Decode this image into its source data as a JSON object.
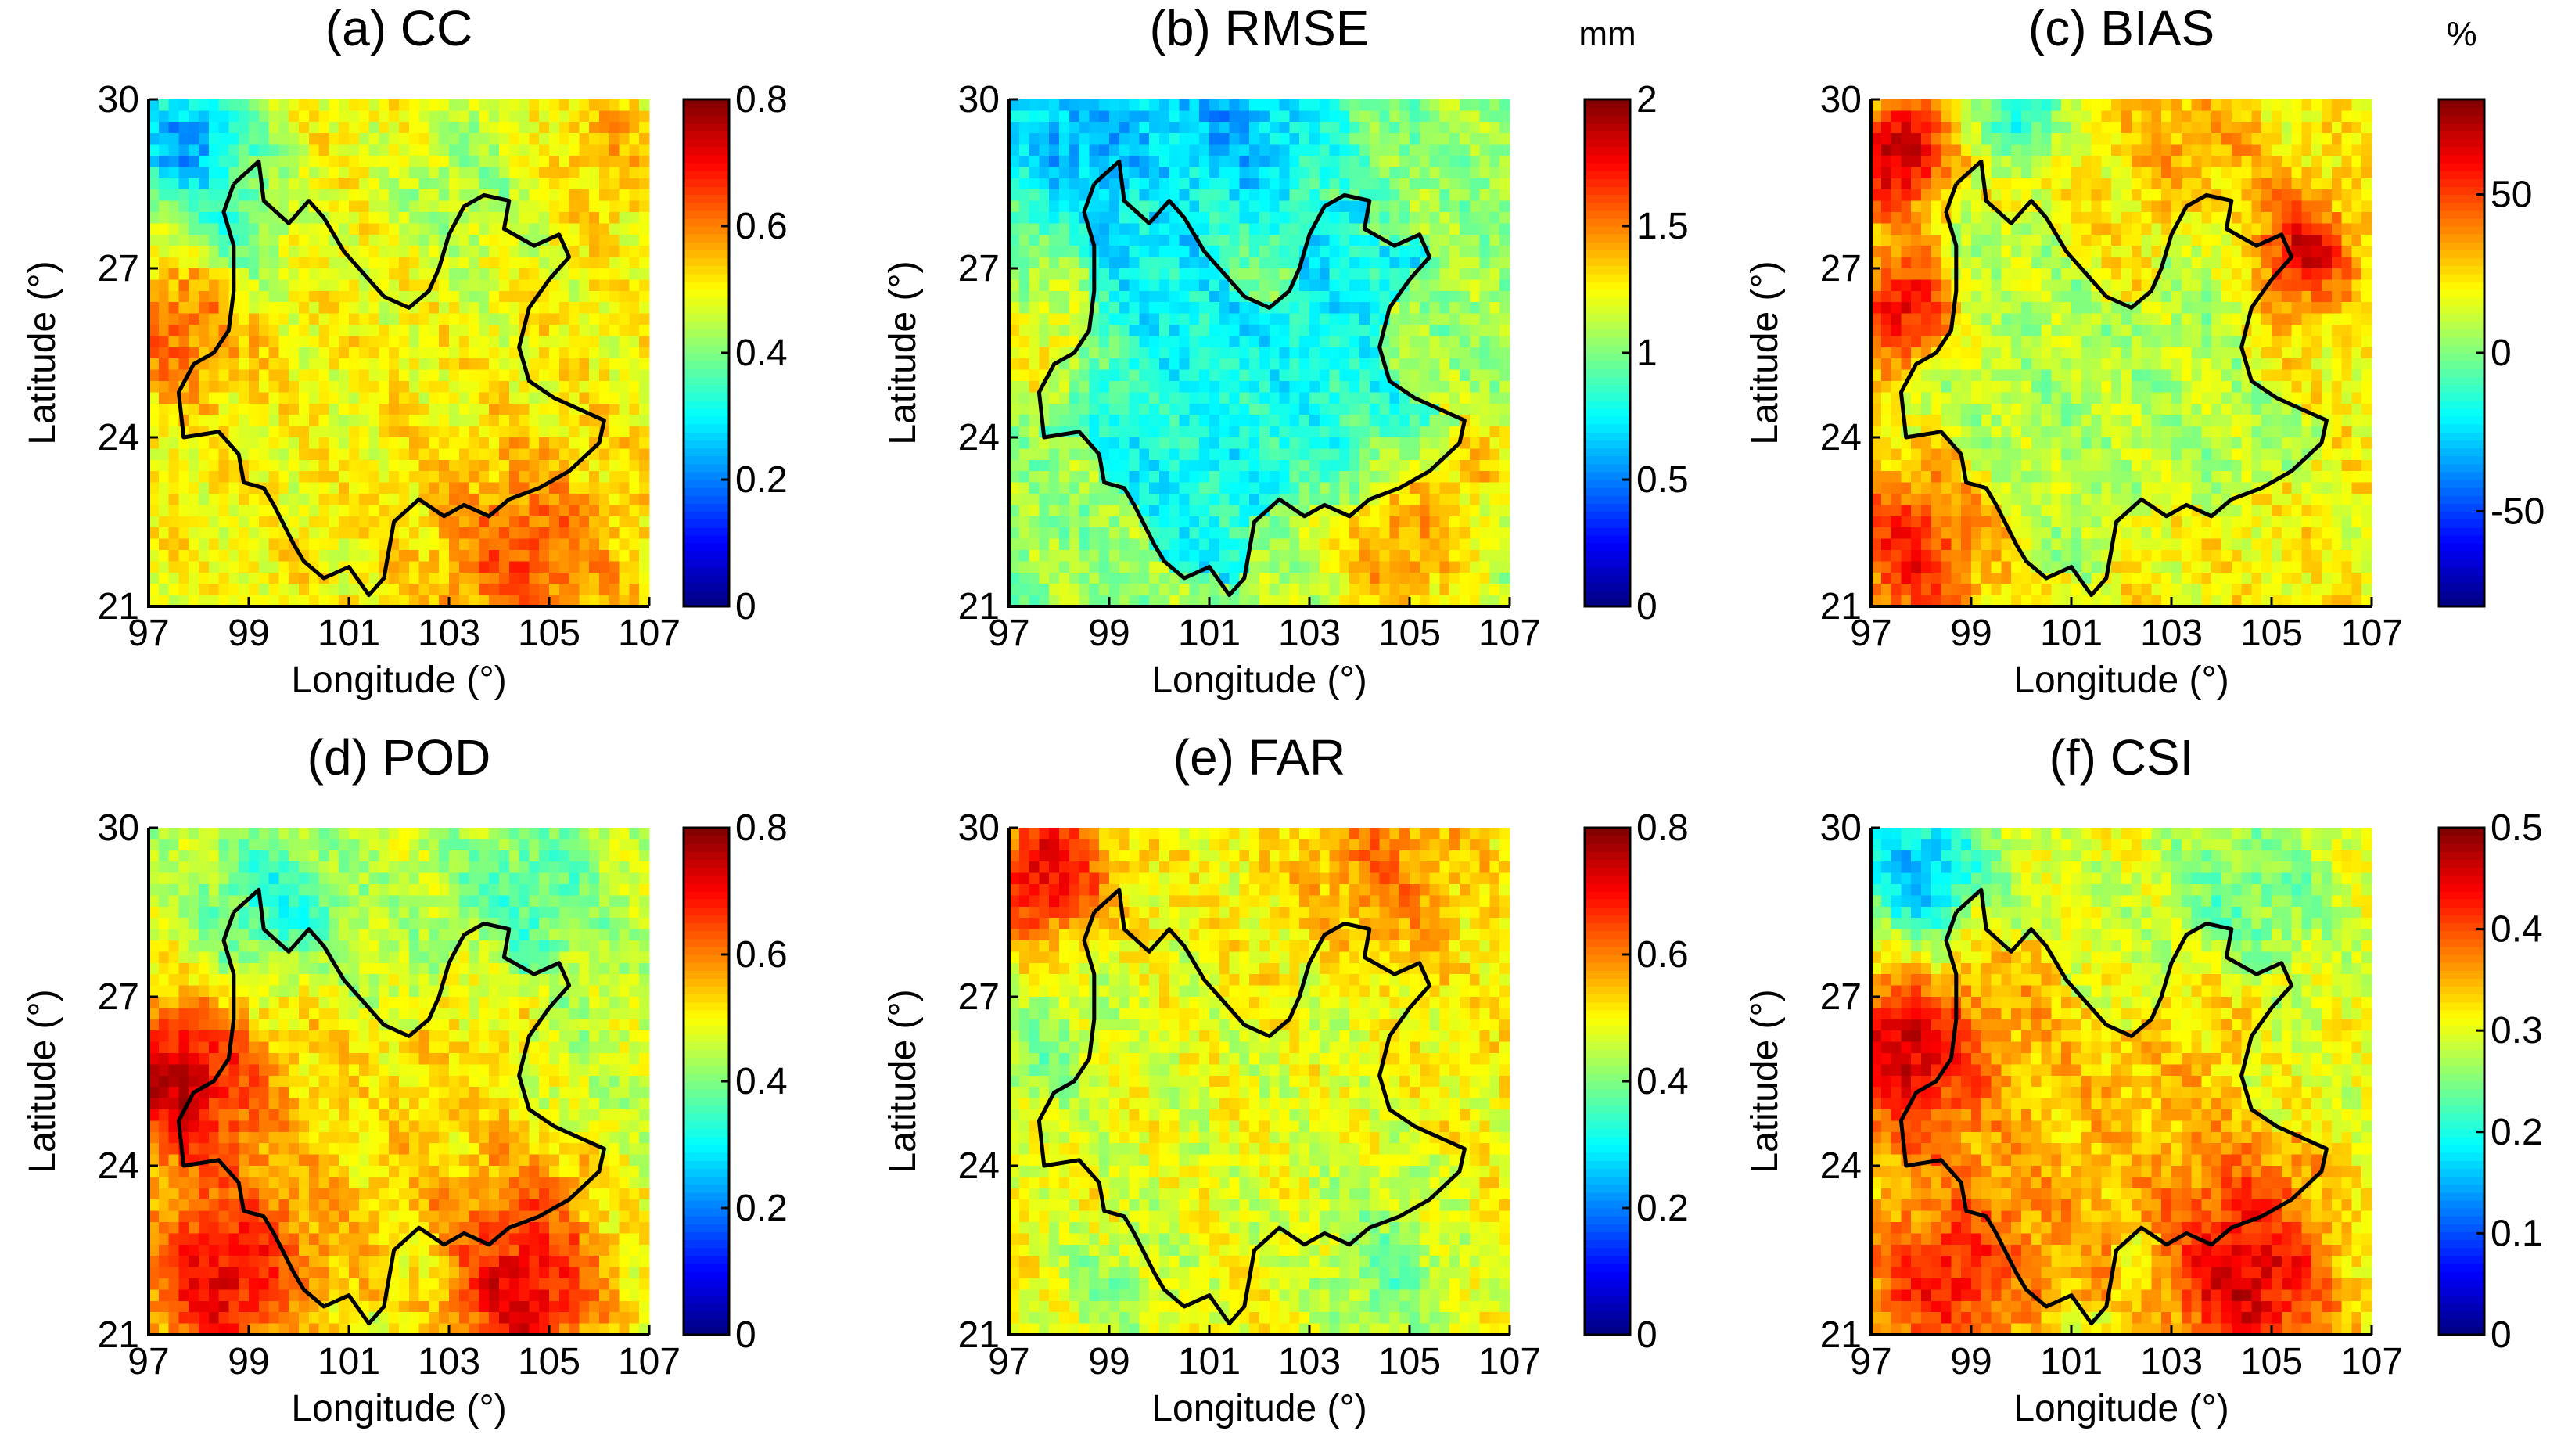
{
  "figure": {
    "colormap": "jet",
    "region_outline": "Yunnan Province boundary"
  },
  "chart_data": [
    {
      "type": "heatmap",
      "id": "a",
      "title": "(a) CC",
      "xlabel": "Longitude (°)",
      "ylabel": "Latitude (°)",
      "xlim": [
        97,
        107
      ],
      "ylim": [
        21,
        30
      ],
      "xticks": [
        "97",
        "99",
        "101",
        "103",
        "105",
        "107"
      ],
      "yticks": [
        "21",
        "24",
        "27",
        "30"
      ],
      "colorbar": {
        "min": 0,
        "max": 0.8,
        "ticks": [
          "0",
          "0.2",
          "0.4",
          "0.6",
          "0.8"
        ],
        "unit": ""
      },
      "field": {
        "base": 0.5,
        "inside": 0.5,
        "features": [
          {
            "lon": 97.8,
            "lat": 29.2,
            "r": 1.4,
            "v": 0.22
          },
          {
            "lon": 98.6,
            "lat": 27.6,
            "r": 1.0,
            "v": 0.32
          },
          {
            "lon": 97.6,
            "lat": 26.0,
            "r": 1.3,
            "v": 0.62
          },
          {
            "lon": 104.5,
            "lat": 21.8,
            "r": 1.8,
            "v": 0.64
          },
          {
            "lon": 103.5,
            "lat": 28.5,
            "r": 1.6,
            "v": 0.42
          },
          {
            "lon": 106.0,
            "lat": 29.0,
            "r": 1.3,
            "v": 0.55
          }
        ]
      }
    },
    {
      "type": "heatmap",
      "id": "b",
      "title": "(b) RMSE",
      "xlabel": "Longitude (°)",
      "ylabel": "Latitude (°)",
      "xlim": [
        97,
        107
      ],
      "ylim": [
        21,
        30
      ],
      "xticks": [
        "97",
        "99",
        "101",
        "103",
        "105",
        "107"
      ],
      "yticks": [
        "21",
        "24",
        "27",
        "30"
      ],
      "colorbar": {
        "min": 0,
        "max": 2,
        "ticks": [
          "0",
          "0.5",
          "1",
          "1.5",
          "2"
        ],
        "unit": "mm"
      },
      "field": {
        "base": 1.05,
        "inside": 0.78,
        "features": [
          {
            "lon": 98.5,
            "lat": 29.4,
            "r": 1.8,
            "v": 0.55
          },
          {
            "lon": 101.5,
            "lat": 29.5,
            "r": 2.2,
            "v": 0.6
          },
          {
            "lon": 104.8,
            "lat": 22.0,
            "r": 1.6,
            "v": 1.45
          },
          {
            "lon": 106.3,
            "lat": 23.5,
            "r": 1.0,
            "v": 1.35
          },
          {
            "lon": 97.6,
            "lat": 25.5,
            "r": 1.2,
            "v": 1.25
          }
        ]
      }
    },
    {
      "type": "heatmap",
      "id": "c",
      "title": "(c) BIAS",
      "xlabel": "Longitude (°)",
      "ylabel": "Latitude (°)",
      "xlim": [
        97,
        107
      ],
      "ylim": [
        21,
        30
      ],
      "xticks": [
        "97",
        "99",
        "101",
        "103",
        "105",
        "107"
      ],
      "yticks": [
        "21",
        "24",
        "27",
        "30"
      ],
      "colorbar": {
        "min": -80,
        "max": 80,
        "ticks": [
          "-50",
          "0",
          "50"
        ],
        "tickvalues": [
          -50,
          0,
          50
        ],
        "unit": "%"
      },
      "field": {
        "base": 20,
        "inside": 8,
        "features": [
          {
            "lon": 97.5,
            "lat": 29.0,
            "r": 1.0,
            "v": 72
          },
          {
            "lon": 97.6,
            "lat": 26.3,
            "r": 1.0,
            "v": 62
          },
          {
            "lon": 97.8,
            "lat": 22.0,
            "r": 1.5,
            "v": 55
          },
          {
            "lon": 105.6,
            "lat": 27.3,
            "r": 1.0,
            "v": 65
          },
          {
            "lon": 103.5,
            "lat": 29.3,
            "r": 1.4,
            "v": 35
          },
          {
            "lon": 100.0,
            "lat": 29.7,
            "r": 0.8,
            "v": -20
          }
        ]
      }
    },
    {
      "type": "heatmap",
      "id": "d",
      "title": "(d) POD",
      "xlabel": "Longitude (°)",
      "ylabel": "Latitude (°)",
      "xlim": [
        97,
        107
      ],
      "ylim": [
        21,
        30
      ],
      "xticks": [
        "97",
        "99",
        "101",
        "103",
        "105",
        "107"
      ],
      "yticks": [
        "21",
        "24",
        "27",
        "30"
      ],
      "colorbar": {
        "min": 0,
        "max": 0.8,
        "ticks": [
          "0",
          "0.2",
          "0.4",
          "0.6",
          "0.8"
        ],
        "unit": ""
      },
      "field": {
        "base": 0.46,
        "inside": 0.52,
        "features": [
          {
            "lon": 97.6,
            "lat": 25.5,
            "r": 1.6,
            "v": 0.74
          },
          {
            "lon": 98.5,
            "lat": 22.0,
            "r": 1.8,
            "v": 0.72
          },
          {
            "lon": 104.5,
            "lat": 21.8,
            "r": 1.8,
            "v": 0.72
          },
          {
            "lon": 99.5,
            "lat": 28.6,
            "r": 1.4,
            "v": 0.33
          },
          {
            "lon": 104.5,
            "lat": 28.7,
            "r": 1.5,
            "v": 0.36
          }
        ]
      }
    },
    {
      "type": "heatmap",
      "id": "e",
      "title": "(e) FAR",
      "xlabel": "Longitude (°)",
      "ylabel": "Latitude (°)",
      "xlim": [
        97,
        107
      ],
      "ylim": [
        21,
        30
      ],
      "xticks": [
        "97",
        "99",
        "101",
        "103",
        "105",
        "107"
      ],
      "yticks": [
        "21",
        "24",
        "27",
        "30"
      ],
      "colorbar": {
        "min": 0,
        "max": 0.8,
        "ticks": [
          "0",
          "0.2",
          "0.4",
          "0.6",
          "0.8"
        ],
        "unit": ""
      },
      "field": {
        "base": 0.5,
        "inside": 0.48,
        "features": [
          {
            "lon": 97.7,
            "lat": 29.2,
            "r": 1.2,
            "v": 0.72
          },
          {
            "lon": 104.5,
            "lat": 29.3,
            "r": 1.6,
            "v": 0.6
          },
          {
            "lon": 97.6,
            "lat": 26.0,
            "r": 1.2,
            "v": 0.4
          },
          {
            "lon": 104.5,
            "lat": 22.0,
            "r": 1.5,
            "v": 0.4
          },
          {
            "lon": 99.0,
            "lat": 21.8,
            "r": 1.2,
            "v": 0.42
          }
        ]
      }
    },
    {
      "type": "heatmap",
      "id": "f",
      "title": "(f) CSI",
      "xlabel": "Longitude (°)",
      "ylabel": "Latitude (°)",
      "xlim": [
        97,
        107
      ],
      "ylim": [
        21,
        30
      ],
      "xticks": [
        "97",
        "99",
        "101",
        "103",
        "105",
        "107"
      ],
      "yticks": [
        "21",
        "24",
        "27",
        "30"
      ],
      "colorbar": {
        "min": 0,
        "max": 0.5,
        "ticks": [
          "0",
          "0.1",
          "0.2",
          "0.3",
          "0.4",
          "0.5"
        ],
        "unit": ""
      },
      "field": {
        "base": 0.3,
        "inside": 0.34,
        "features": [
          {
            "lon": 97.6,
            "lat": 26.0,
            "r": 1.5,
            "v": 0.47
          },
          {
            "lon": 98.5,
            "lat": 22.0,
            "r": 1.8,
            "v": 0.43
          },
          {
            "lon": 104.5,
            "lat": 22.0,
            "r": 1.8,
            "v": 0.46
          },
          {
            "lon": 98.0,
            "lat": 29.3,
            "r": 1.3,
            "v": 0.15
          },
          {
            "lon": 104.5,
            "lat": 28.8,
            "r": 1.6,
            "v": 0.24
          }
        ]
      }
    }
  ]
}
